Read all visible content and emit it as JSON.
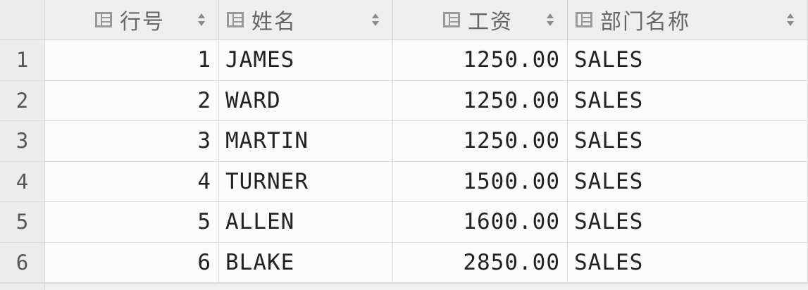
{
  "grid": {
    "columns": [
      {
        "label": "行号",
        "icon": "column-icon",
        "sort_icon": "sort-icon"
      },
      {
        "label": "姓名",
        "icon": "column-icon",
        "sort_icon": "sort-icon"
      },
      {
        "label": "工资",
        "icon": "column-icon",
        "sort_icon": "sort-icon"
      },
      {
        "label": "部门名称",
        "icon": "column-icon",
        "sort_icon": "sort-icon"
      }
    ],
    "rows": [
      {
        "num": "1",
        "cells": [
          "1",
          "JAMES",
          "1250.00",
          "SALES"
        ]
      },
      {
        "num": "2",
        "cells": [
          "2",
          "WARD",
          "1250.00",
          "SALES"
        ]
      },
      {
        "num": "3",
        "cells": [
          "3",
          "MARTIN",
          "1250.00",
          "SALES"
        ]
      },
      {
        "num": "4",
        "cells": [
          "4",
          "TURNER",
          "1500.00",
          "SALES"
        ]
      },
      {
        "num": "5",
        "cells": [
          "5",
          "ALLEN",
          "1600.00",
          "SALES"
        ]
      },
      {
        "num": "6",
        "cells": [
          "6",
          "BLAKE",
          "2850.00",
          "SALES"
        ]
      }
    ]
  },
  "colors": {
    "header_bg": "#eeeeee",
    "cell_bg": "#fbfbfb",
    "text": "#222222",
    "header_text": "#666666",
    "icon": "#8a8a8a"
  }
}
